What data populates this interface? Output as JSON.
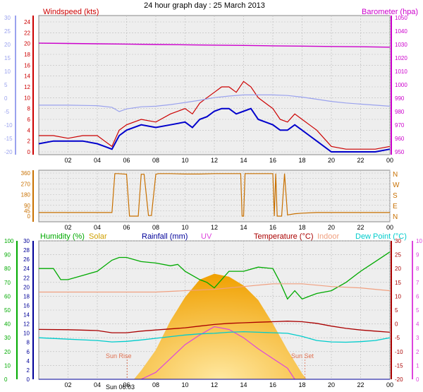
{
  "title": "24 hour graph day : 25 March 2013",
  "time_ticks": [
    "02",
    "04",
    "06",
    "08",
    "10",
    "12",
    "14",
    "16",
    "18",
    "20",
    "22",
    "00"
  ],
  "chart_data": [
    {
      "id": "wind-baro",
      "type": "line",
      "labels": {
        "left": "Windspeed (kts)",
        "right": "Barometer (hpa)"
      },
      "colors": {
        "windspeed": "#cc0000",
        "barometer": "#cc00cc",
        "avg": "#0000cc",
        "temperature": "#9aa2ee",
        "grid": "#bbbbbb",
        "bg": "#eeeeee"
      },
      "axes": {
        "left_speed": [
          0,
          2,
          4,
          6,
          8,
          10,
          12,
          14,
          16,
          18,
          20,
          22,
          24
        ],
        "left_temp": [
          -20,
          -15,
          -10,
          -5,
          0,
          5,
          10,
          15,
          20,
          25,
          30
        ],
        "right_baro": [
          950,
          960,
          970,
          980,
          990,
          1000,
          1010,
          1020,
          1030,
          1040,
          1050
        ]
      },
      "series": [
        {
          "name": "windspeed",
          "x": [
            0,
            1,
            2,
            3,
            4,
            4.5,
            5,
            5.5,
            6,
            7,
            8,
            9,
            10,
            10.5,
            11,
            11.5,
            12,
            12.5,
            13,
            13.5,
            14,
            14.5,
            15,
            15.5,
            16,
            16.5,
            17,
            17.5,
            18,
            18.5,
            19,
            20,
            21,
            22,
            23,
            24
          ],
          "values": [
            3,
            3,
            2.5,
            3,
            3,
            2,
            1,
            4,
            5,
            6,
            5.5,
            7,
            8,
            7,
            9,
            10,
            11,
            12,
            12,
            11,
            13,
            12,
            10,
            9,
            8,
            6,
            5.5,
            7,
            6,
            5,
            4,
            1,
            0.5,
            0.5,
            0.5,
            1
          ]
        },
        {
          "name": "avg",
          "x": [
            0,
            1,
            2,
            3,
            4,
            4.5,
            5,
            5.5,
            6,
            7,
            8,
            9,
            10,
            10.5,
            11,
            11.5,
            12,
            12.5,
            13,
            13.5,
            14,
            14.5,
            15,
            15.5,
            16,
            16.5,
            17,
            17.5,
            18,
            18.5,
            19,
            20,
            21,
            22,
            23,
            24
          ],
          "values": [
            1.5,
            2,
            2,
            2,
            1.5,
            1,
            0.5,
            3,
            4,
            5,
            4.5,
            5,
            5.5,
            4.5,
            6,
            6.5,
            7.5,
            8,
            8,
            7,
            7.5,
            8,
            6,
            5.5,
            5,
            4,
            4,
            5,
            4,
            3,
            2,
            0,
            0,
            0,
            0,
            0.5
          ]
        },
        {
          "name": "temperature",
          "x": [
            0,
            2,
            4,
            5,
            5.5,
            6,
            7,
            8,
            9,
            10,
            11,
            12,
            13,
            14,
            15,
            16,
            17,
            18,
            19,
            20,
            21,
            22,
            23,
            24
          ],
          "values": [
            -2.6,
            -2.6,
            -2.8,
            -3.4,
            -5,
            -4,
            -3.2,
            -3,
            -2.4,
            -1.6,
            -0.8,
            0.2,
            0.8,
            1.2,
            1.2,
            1.2,
            1.0,
            0.4,
            -0.4,
            -1.2,
            -1.8,
            -2.2,
            -2.6,
            -3
          ]
        },
        {
          "name": "barometer",
          "x": [
            0,
            2,
            4,
            6,
            8,
            10,
            12,
            14,
            16,
            18,
            20,
            22,
            24
          ],
          "values": [
            1031,
            1030.8,
            1030.5,
            1030.3,
            1030,
            1029.8,
            1029.5,
            1029.3,
            1029,
            1028.8,
            1028.5,
            1028.3,
            1028
          ]
        }
      ]
    },
    {
      "id": "direction",
      "type": "line",
      "colors": {
        "direction": "#c87000",
        "grid": "#bbbbbb",
        "bg": "#eeeeee"
      },
      "axes": {
        "left_deg": [
          0,
          45,
          90,
          135,
          180,
          225,
          270,
          315,
          360
        ],
        "right_compass": [
          "N",
          "W",
          "S",
          "E",
          "N"
        ]
      },
      "series": [
        {
          "name": "direction",
          "x": [
            0,
            4.8,
            5,
            5.2,
            5.4,
            6.0,
            6.2,
            6.8,
            7.0,
            7.2,
            7.5,
            7.7,
            8.0,
            8.2,
            9,
            10,
            11,
            12,
            13,
            13.8,
            13.9,
            14.0,
            14.1,
            15,
            16,
            16.1,
            16.2,
            16.3,
            16.6,
            16.8,
            17.0,
            17.5,
            18,
            19,
            20,
            21,
            22,
            23,
            24
          ],
          "values": [
            30,
            30,
            30,
            355,
            355,
            350,
            0,
            0,
            350,
            350,
            5,
            5,
            350,
            355,
            355,
            352,
            352,
            355,
            355,
            355,
            0,
            0,
            355,
            355,
            355,
            0,
            355,
            0,
            0,
            355,
            10,
            20,
            25,
            30,
            30,
            30,
            30,
            30,
            30
          ]
        }
      ]
    },
    {
      "id": "multi",
      "type": "area",
      "labels": {
        "humidity": "Humidity (%)",
        "solar": "Solar",
        "rainfall": "Rainfall (mm)",
        "uv": "UV",
        "temperature": "Temperature (°C)",
        "indoor": "Indoor",
        "dewpoint": "Dew Point (°C)"
      },
      "annotations": {
        "sunrise": "Sun Rise",
        "sunset": "Sun Set",
        "sunrise_time": "Sun 06:03"
      },
      "colors": {
        "humidity": "#00aa00",
        "solar": "#f0a000",
        "rainfall": "#000099",
        "uv": "#dd44dd",
        "temperature": "#aa0000",
        "indoor": "#f0a080",
        "dewpoint": "#00cccc",
        "windavg": "#b0b0f0",
        "grid": "#bbbbbb",
        "bg": "#eeeeee"
      },
      "axes": {
        "left_humidity": [
          0,
          10,
          20,
          30,
          40,
          50,
          60,
          70,
          80,
          90,
          100
        ],
        "left_rain": [
          0,
          2,
          4,
          6,
          8,
          10,
          12,
          14,
          16,
          18,
          20,
          22,
          24,
          26,
          28,
          30
        ],
        "right_temp": [
          -20,
          -15,
          -10,
          -5,
          0,
          5,
          10,
          15,
          20,
          25,
          30
        ],
        "right_uv": [
          0,
          1,
          2,
          3,
          4,
          5,
          6,
          7,
          8,
          9,
          10
        ]
      },
      "series": [
        {
          "name": "humidity",
          "x": [
            0,
            1,
            1.5,
            2,
            3,
            4,
            5,
            5.5,
            6,
            7,
            8,
            9,
            9.5,
            10,
            11,
            11.5,
            12,
            13,
            14,
            15,
            16,
            16.5,
            17,
            17.5,
            18,
            18.5,
            19,
            20,
            21,
            22,
            23,
            24
          ],
          "values": [
            80,
            80,
            72,
            72,
            75,
            78,
            86,
            88,
            88,
            85,
            84,
            82,
            83,
            78,
            72,
            70,
            66,
            78,
            78,
            81,
            80,
            70,
            58,
            64,
            58,
            60,
            62,
            64,
            70,
            78,
            85,
            92
          ]
        },
        {
          "name": "solar",
          "x": [
            6.5,
            7,
            8,
            9,
            10,
            11,
            12,
            13,
            14,
            15,
            16,
            17,
            18,
            18.3
          ],
          "values": [
            0,
            15,
            50,
            100,
            140,
            170,
            180,
            175,
            160,
            135,
            95,
            50,
            10,
            0
          ]
        },
        {
          "name": "uv",
          "x": [
            7,
            8,
            9,
            10,
            11,
            12,
            13,
            14,
            15,
            16,
            17,
            17.5
          ],
          "values": [
            0,
            0.5,
            1.5,
            2.5,
            3.2,
            3.8,
            3.6,
            3.0,
            2.2,
            1.5,
            0.8,
            0
          ]
        },
        {
          "name": "temperature",
          "x": [
            0,
            2,
            4,
            5,
            6,
            7,
            8,
            9,
            10,
            11,
            12,
            13,
            14,
            15,
            16,
            17,
            18,
            19,
            20,
            21,
            22,
            23,
            24
          ],
          "values": [
            -2,
            -2.1,
            -2.4,
            -3.2,
            -3.2,
            -2.6,
            -2.2,
            -1.8,
            -1.4,
            -0.8,
            -0.2,
            0.2,
            0.4,
            0.6,
            0.8,
            1.0,
            0.8,
            0.2,
            -0.8,
            -1.6,
            -2.2,
            -2.6,
            -3.0
          ]
        },
        {
          "name": "indoor",
          "x": [
            0,
            4,
            8,
            12,
            14,
            16,
            18,
            20,
            22,
            24
          ],
          "values": [
            11.5,
            11.5,
            11.5,
            12.5,
            13.5,
            14.5,
            14.5,
            13.5,
            13,
            12
          ]
        },
        {
          "name": "dewpoint",
          "x": [
            0,
            2,
            4,
            5,
            6,
            7,
            8,
            9,
            10,
            11,
            12,
            13,
            14,
            15,
            16,
            17,
            18,
            19,
            20,
            21,
            22,
            23,
            24
          ],
          "values": [
            -5,
            -5.5,
            -6,
            -6.5,
            -6.3,
            -5.8,
            -5.2,
            -4.6,
            -4.0,
            -3.6,
            -3.4,
            -3.0,
            -2.8,
            -3.0,
            -3.2,
            -3.4,
            -4.5,
            -6.0,
            -6.5,
            -6.6,
            -6.4,
            -6.0,
            -5.0
          ]
        },
        {
          "name": "rainfall",
          "x": [
            0,
            24
          ],
          "values": [
            0,
            0
          ]
        }
      ]
    }
  ]
}
